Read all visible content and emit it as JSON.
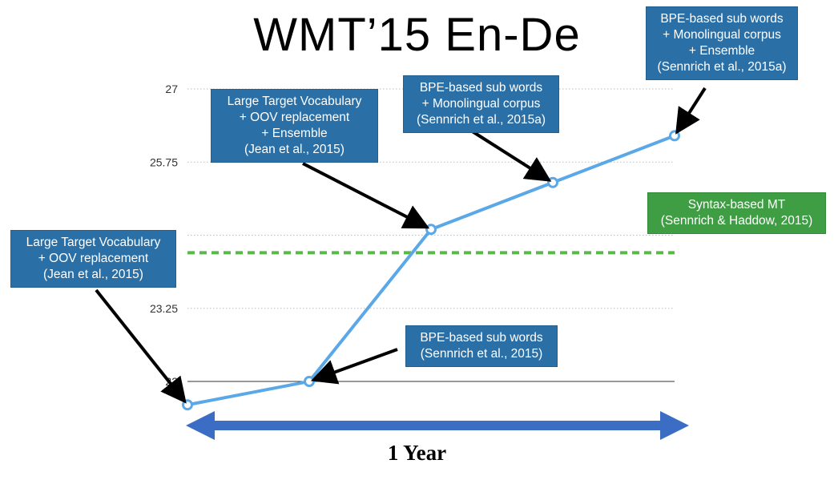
{
  "title": "WMT’15 En-De",
  "duration_label": "1 Year",
  "colors": {
    "series": "#5aa8e8",
    "baseline": "#5ab849",
    "callout_blue": "#2a6fa6",
    "callout_green": "#3f9e43",
    "arrow": "#000000",
    "timeline": "#3b6dc4"
  },
  "annotations": {
    "a1": [
      "Large Target Vocabulary",
      "+ OOV replacement",
      "(Jean et al., 2015)"
    ],
    "a2": [
      "BPE-based sub words",
      "(Sennrich et al., 2015)"
    ],
    "a3": [
      "Large Target Vocabulary",
      "+ OOV replacement",
      "+ Ensemble",
      "(Jean et al., 2015)"
    ],
    "a4": [
      "BPE-based sub words",
      "+ Monolingual corpus",
      "(Sennrich et al., 2015a)"
    ],
    "a5": [
      "BPE-based sub words",
      "+ Monolingual corpus",
      "+ Ensemble",
      "(Sennrich et al., 2015a)"
    ],
    "baseline": [
      "Syntax-based MT",
      "(Sennrich & Haddow, 2015)"
    ]
  },
  "chart_data": {
    "type": "line",
    "title": "WMT’15 En-De",
    "ylabel": "",
    "xlabel": "",
    "ylim": [
      22,
      27
    ],
    "yticks": [
      "22",
      "23.25",
      "",
      "25.75",
      "27"
    ],
    "grid": true,
    "series": [
      {
        "x": [
          1,
          2,
          3,
          4,
          5
        ],
        "values": [
          21.6,
          22.0,
          24.6,
          25.4,
          26.2
        ]
      }
    ],
    "reference_line": {
      "value": 24.2,
      "style": "dashed"
    }
  }
}
